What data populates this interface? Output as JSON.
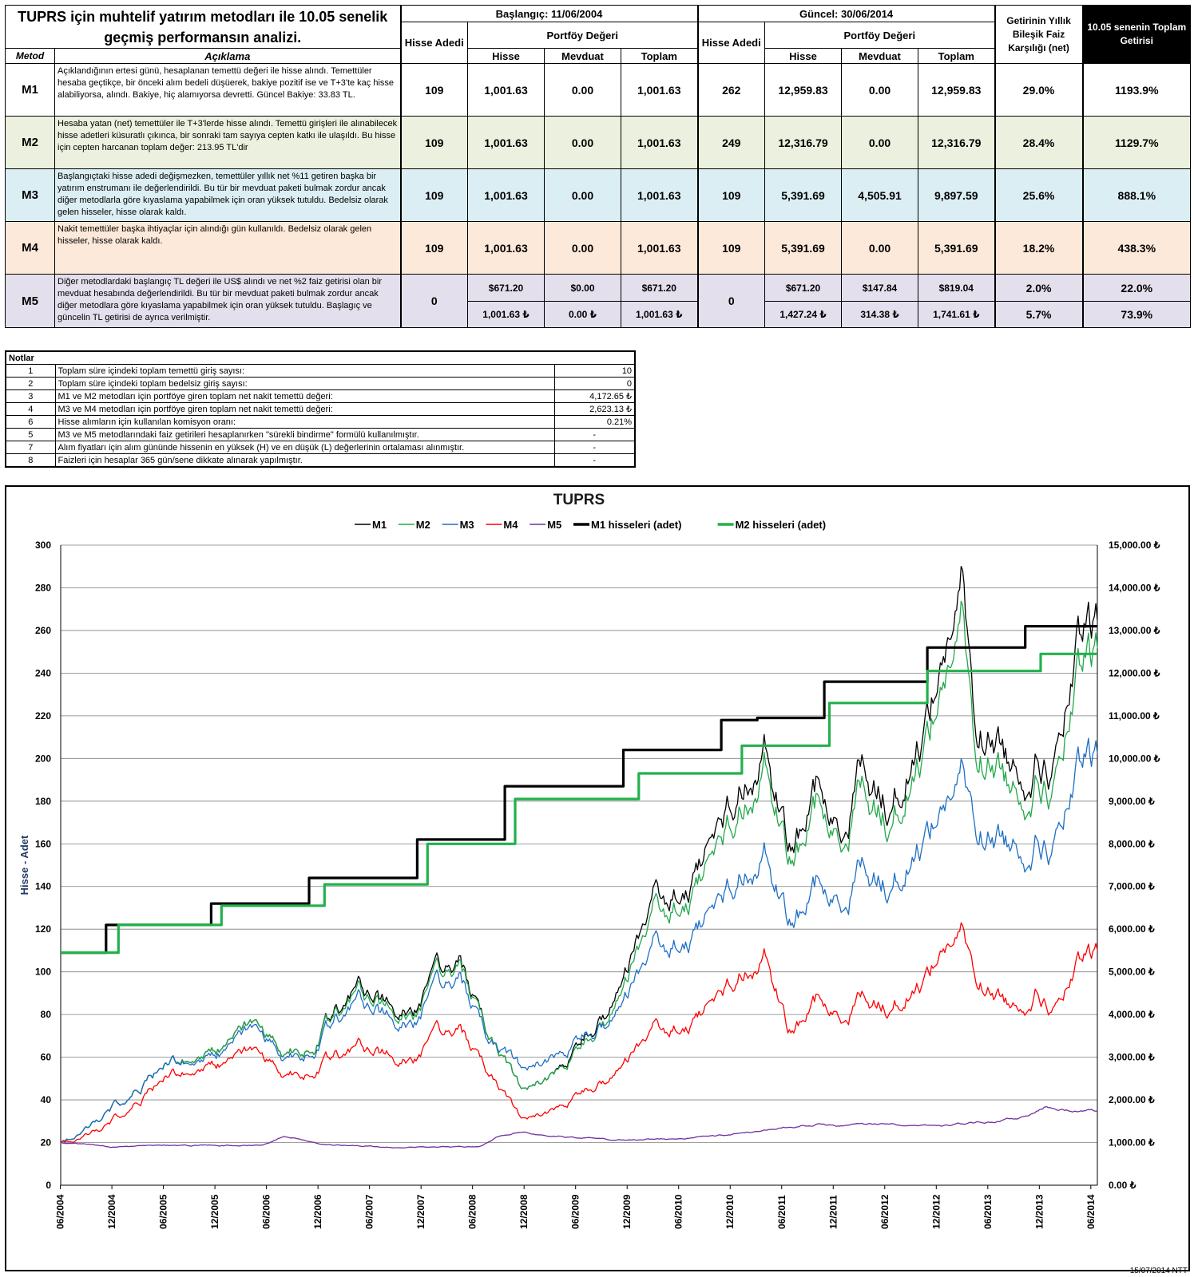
{
  "header": {
    "title": "TUPRS için muhtelif yatırım metodları ile 10.05 senelik geçmiş performansın analizi.",
    "col_method": "Metod",
    "col_desc": "Açıklama",
    "start_label": "Başlangıç:  11/06/2004",
    "current_label": "Güncel:  30/06/2014",
    "shares_label": "Hisse Adedi",
    "portfolio_label": "Portföy Değeri",
    "sub_hisse": "Hisse",
    "sub_mevduat": "Mevduat",
    "sub_toplam": "Toplam",
    "annual_label": "Getirinin Yıllık Bileşik Faiz Karşılığı (net)",
    "total_label": "10.05 senenin Toplam Getirisi"
  },
  "rows": [
    {
      "method": "M1",
      "desc": "Açıklandığının ertesi günü, hesaplanan temettü değeri ile hisse alındı. Temettüler hesaba geçtikçe, bir önceki alım bedeli düşüerek, bakiye pozitif ise ve T+3'te kaç hisse alabiliyorsa, alındı. Bakiye, hiç alamıyorsa devretti. Güncel Bakiye: 33.83 TL.",
      "start_shares": "109",
      "start_hisse": "1,001.63",
      "start_mevduat": "0.00",
      "start_toplam": "1,001.63",
      "cur_shares": "262",
      "cur_hisse": "12,959.83",
      "cur_mevduat": "0.00",
      "cur_toplam": "12,959.83",
      "annual": "29.0%",
      "total": "1193.9%"
    },
    {
      "method": "M2",
      "desc": "Hesaba yatan (net) temettüler ile T+3'lerde hisse alındı. Temettü girişleri ile alınabilecek hisse adetleri küsuratlı çıkınca, bir sonraki tam sayıya cepten katkı ile ulaşıldı. Bu hisse için cepten harcanan toplam değer: 213.95 TL'dir",
      "start_shares": "109",
      "start_hisse": "1,001.63",
      "start_mevduat": "0.00",
      "start_toplam": "1,001.63",
      "cur_shares": "249",
      "cur_hisse": "12,316.79",
      "cur_mevduat": "0.00",
      "cur_toplam": "12,316.79",
      "annual": "28.4%",
      "total": "1129.7%"
    },
    {
      "method": "M3",
      "desc": "Başlangıçtaki hisse adedi değişmezken, temettüler yıllık net %11 getiren başka bir yatırım enstrumanı ile değerlendirildi. Bu tür bir mevduat paketi bulmak zordur ancak diğer metodlarla göre kıyaslama yapabilmek için oran yüksek tutuldu. Bedelsiz olarak gelen hisseler, hisse olarak kaldı.",
      "start_shares": "109",
      "start_hisse": "1,001.63",
      "start_mevduat": "0.00",
      "start_toplam": "1,001.63",
      "cur_shares": "109",
      "cur_hisse": "5,391.69",
      "cur_mevduat": "4,505.91",
      "cur_toplam": "9,897.59",
      "annual": "25.6%",
      "total": "888.1%"
    },
    {
      "method": "M4",
      "desc": "Nakit temettüler başka ihtiyaçlar için alındığı gün kullanıldı. Bedelsiz olarak gelen hisseler, hisse olarak kaldı.",
      "start_shares": "109",
      "start_hisse": "1,001.63",
      "start_mevduat": "0.00",
      "start_toplam": "1,001.63",
      "cur_shares": "109",
      "cur_hisse": "5,391.69",
      "cur_mevduat": "0.00",
      "cur_toplam": "5,391.69",
      "annual": "18.2%",
      "total": "438.3%"
    }
  ],
  "row_m5": {
    "method": "M5",
    "desc": "Diğer metodlardaki başlangıç TL değeri ile US$ alındı ve net %2 faiz getirisi olan bir mevduat hesabında değerlendirildi. Bu tür bir mevduat paketi bulmak zordur ancak diğer metodlara göre kıyaslama yapabilmek için oran yüksek tutuldu. Başlagıç ve güncelin TL getirisi de ayrıca verilmiştir.",
    "start_shares": "0",
    "cur_shares": "0",
    "usd": {
      "start_hisse": "$671.20",
      "start_mevduat": "$0.00",
      "start_toplam": "$671.20",
      "cur_hisse": "$671.20",
      "cur_mevduat": "$147.84",
      "cur_toplam": "$819.04",
      "annual": "2.0%",
      "total": "22.0%"
    },
    "tl": {
      "start_hisse": "1,001.63 ₺",
      "start_mevduat": "0.00 ₺",
      "start_toplam": "1,001.63 ₺",
      "cur_hisse": "1,427.24 ₺",
      "cur_mevduat": "314.38 ₺",
      "cur_toplam": "1,741.61 ₺",
      "annual": "5.7%",
      "total": "73.9%"
    }
  },
  "notes": {
    "title": "Notlar",
    "items": [
      {
        "n": "1",
        "text": "Toplam süre içindeki toplam temettü giriş sayısı:",
        "value": "10"
      },
      {
        "n": "2",
        "text": "Toplam süre içindeki toplam bedelsiz giriş sayısı:",
        "value": "0"
      },
      {
        "n": "3",
        "text": "M1 ve M2 metodları için portföye giren toplam net nakit temettü değeri:",
        "value": "4,172.65 ₺"
      },
      {
        "n": "4",
        "text": "M3 ve M4 metodları için portföye giren toplam net nakit temettü değeri:",
        "value": "2,623.13 ₺"
      },
      {
        "n": "6",
        "text": "Hisse alımların için kullanılan komisyon oranı:",
        "value": "0.21%"
      },
      {
        "n": "5",
        "text": "M3 ve M5 metodlarındaki faiz getirileri hesaplanırken \"sürekli bindirme\" formülü kullanılmıştır.",
        "value": "-"
      },
      {
        "n": "7",
        "text": "Alım fiyatları için alım gününde hissenin en yüksek (H) ve en düşük (L) değerlerinin ortalaması alınmıştır.",
        "value": "-"
      },
      {
        "n": "8",
        "text": "Faizleri için hesaplar 365 gün/sene dikkate alınarak yapılmıştır.",
        "value": "-"
      }
    ]
  },
  "chart_data": {
    "type": "line",
    "title": "TUPRS",
    "ylabel": "Hisse - Adet",
    "ylim": [
      0,
      300
    ],
    "y_ticks": [
      "0",
      "20",
      "40",
      "60",
      "80",
      "100",
      "120",
      "140",
      "160",
      "180",
      "200",
      "220",
      "240",
      "260",
      "280",
      "300"
    ],
    "y2lim": [
      0,
      15000
    ],
    "y2_ticks": [
      "0.00 ₺",
      "1,000.00 ₺",
      "2,000.00 ₺",
      "3,000.00 ₺",
      "4,000.00 ₺",
      "5,000.00 ₺",
      "6,000.00 ₺",
      "7,000.00 ₺",
      "8,000.00 ₺",
      "9,000.00 ₺",
      "10,000.00 ₺",
      "11,000.00 ₺",
      "12,000.00 ₺",
      "13,000.00 ₺",
      "14,000.00 ₺",
      "15,000.00 ₺"
    ],
    "x_ticks": [
      "06/2004",
      "12/2004",
      "06/2005",
      "12/2005",
      "06/2006",
      "12/2006",
      "06/2007",
      "12/2007",
      "06/2008",
      "12/2008",
      "06/2009",
      "12/2009",
      "06/2010",
      "12/2010",
      "06/2011",
      "12/2011",
      "06/2012",
      "12/2012",
      "06/2013",
      "12/2013",
      "06/2014"
    ],
    "xlim": [
      2004.44,
      2014.5
    ],
    "legend": [
      {
        "name": "M1",
        "color": "#000000",
        "thick": false
      },
      {
        "name": "M2",
        "color": "#22a84a",
        "thick": false
      },
      {
        "name": "M3",
        "color": "#1f6fc5",
        "thick": false
      },
      {
        "name": "M4",
        "color": "#ff0000",
        "thick": false
      },
      {
        "name": "M5",
        "color": "#7030a0",
        "thick": false
      },
      {
        "name": "M1 hisseleri (adet)",
        "color": "#000000",
        "thick": true
      },
      {
        "name": "M2 hisseleri (adet)",
        "color": "#22b14c",
        "thick": true
      }
    ],
    "series_values": [
      {
        "name": "M1",
        "axis": "right",
        "x": [
          2004.44,
          2004.9,
          2005.2,
          2005.5,
          2005.9,
          2006.3,
          2006.6,
          2006.9,
          2007.3,
          2007.6,
          2007.9,
          2008.3,
          2008.6,
          2008.9,
          2009.2,
          2009.5,
          2009.9,
          2010.2,
          2010.5,
          2010.8,
          2011.1,
          2011.3,
          2011.5,
          2011.8,
          2012.0,
          2012.2,
          2012.5,
          2012.8,
          2013.0,
          2013.2,
          2013.3,
          2013.5,
          2013.7,
          2013.9,
          2014.1,
          2014.3,
          2014.5
        ],
        "values": [
          1000,
          1700,
          2300,
          2900,
          3100,
          3600,
          3100,
          3300,
          4700,
          4200,
          4300,
          5300,
          3600,
          2300,
          2500,
          3400,
          4600,
          6600,
          6900,
          8300,
          9800,
          10700,
          7700,
          9400,
          8000,
          10000,
          9000,
          10600,
          12500,
          14000,
          10800,
          10500,
          9800,
          10100,
          9900,
          12200,
          12960
        ]
      },
      {
        "name": "M2",
        "axis": "right",
        "x": [
          2004.44,
          2004.9,
          2005.2,
          2005.5,
          2005.9,
          2006.3,
          2006.6,
          2006.9,
          2007.3,
          2007.6,
          2007.9,
          2008.3,
          2008.6,
          2008.9,
          2009.2,
          2009.5,
          2009.9,
          2010.2,
          2010.5,
          2010.8,
          2011.1,
          2011.3,
          2011.5,
          2011.8,
          2012.0,
          2012.2,
          2012.5,
          2012.8,
          2013.0,
          2013.2,
          2013.3,
          2013.5,
          2013.7,
          2013.9,
          2014.1,
          2014.3,
          2014.5
        ],
        "values": [
          1000,
          1700,
          2300,
          2900,
          3100,
          3600,
          3100,
          3300,
          4600,
          4100,
          4200,
          5200,
          3600,
          2300,
          2500,
          3300,
          4400,
          6300,
          6600,
          7900,
          9300,
          10300,
          7400,
          9000,
          7800,
          9500,
          8600,
          10200,
          11900,
          13200,
          10200,
          9900,
          9300,
          9600,
          9400,
          11500,
          12317
        ]
      },
      {
        "name": "M3",
        "axis": "right",
        "x": [
          2004.44,
          2004.9,
          2005.2,
          2005.5,
          2005.9,
          2006.3,
          2006.6,
          2006.9,
          2007.3,
          2007.6,
          2007.9,
          2008.3,
          2008.6,
          2008.9,
          2009.2,
          2009.5,
          2009.9,
          2010.2,
          2010.5,
          2010.8,
          2011.1,
          2011.3,
          2011.5,
          2011.8,
          2012.0,
          2012.2,
          2012.5,
          2012.8,
          2013.0,
          2013.2,
          2013.3,
          2013.5,
          2013.7,
          2013.9,
          2014.1,
          2014.3,
          2014.5
        ],
        "values": [
          1000,
          1700,
          2300,
          2900,
          3000,
          3500,
          3000,
          3200,
          4400,
          3900,
          4000,
          4900,
          3500,
          2800,
          2900,
          3500,
          4100,
          5500,
          5700,
          6600,
          7600,
          8100,
          6000,
          7100,
          6400,
          7600,
          7100,
          8100,
          9000,
          9600,
          8400,
          8200,
          8000,
          8200,
          8000,
          9400,
          9898
        ]
      },
      {
        "name": "M4",
        "axis": "right",
        "x": [
          2004.44,
          2004.9,
          2005.2,
          2005.5,
          2005.9,
          2006.3,
          2006.6,
          2006.9,
          2007.3,
          2007.6,
          2007.9,
          2008.3,
          2008.6,
          2008.9,
          2009.2,
          2009.5,
          2009.9,
          2010.2,
          2010.5,
          2010.8,
          2011.1,
          2011.3,
          2011.5,
          2011.8,
          2012.0,
          2012.2,
          2012.5,
          2012.8,
          2013.0,
          2013.2,
          2013.3,
          2013.5,
          2013.7,
          2013.9,
          2014.1,
          2014.3,
          2014.5
        ],
        "values": [
          1000,
          1400,
          2000,
          2600,
          2800,
          3000,
          2600,
          2700,
          3300,
          3000,
          3100,
          3700,
          2700,
          1600,
          1700,
          2200,
          2700,
          3600,
          3700,
          4400,
          5200,
          5600,
          3500,
          4400,
          3800,
          4500,
          4200,
          4800,
          5600,
          5900,
          4900,
          4500,
          4200,
          4600,
          4100,
          5000,
          5392
        ]
      },
      {
        "name": "M5",
        "axis": "right",
        "x": [
          2004.44,
          2005.0,
          2005.5,
          2006.0,
          2006.4,
          2006.6,
          2007.0,
          2007.5,
          2008.0,
          2008.5,
          2008.7,
          2008.9,
          2009.2,
          2009.6,
          2010.0,
          2010.5,
          2011.0,
          2011.5,
          2011.8,
          2012.0,
          2012.5,
          2013.0,
          2013.5,
          2013.8,
          2014.0,
          2014.3,
          2014.5
        ],
        "values": [
          1000,
          900,
          920,
          930,
          950,
          1150,
          950,
          900,
          880,
          900,
          1150,
          1250,
          1150,
          1100,
          1050,
          1100,
          1200,
          1350,
          1450,
          1400,
          1450,
          1400,
          1500,
          1600,
          1850,
          1750,
          1742
        ]
      },
      {
        "name": "M1 hisseleri (adet)",
        "axis": "left",
        "step": true,
        "x": [
          2004.44,
          2004.88,
          2005.9,
          2006.85,
          2007.9,
          2008.75,
          2009.9,
          2010.85,
          2011.2,
          2011.85,
          2012.85,
          2013.8,
          2014.5
        ],
        "values": [
          109,
          122,
          132,
          144,
          162,
          187,
          204,
          218,
          219,
          236,
          252,
          262,
          262
        ]
      },
      {
        "name": "M2 hisseleri (adet)",
        "axis": "left",
        "step": true,
        "x": [
          2004.44,
          2005.0,
          2006.0,
          2007.0,
          2008.0,
          2008.85,
          2010.05,
          2011.05,
          2011.9,
          2012.85,
          2013.95,
          2014.5
        ],
        "values": [
          109,
          122,
          131,
          141,
          160,
          181,
          193,
          206,
          226,
          241,
          249,
          249
        ]
      }
    ]
  },
  "footer": "15/07/2014 NTT"
}
